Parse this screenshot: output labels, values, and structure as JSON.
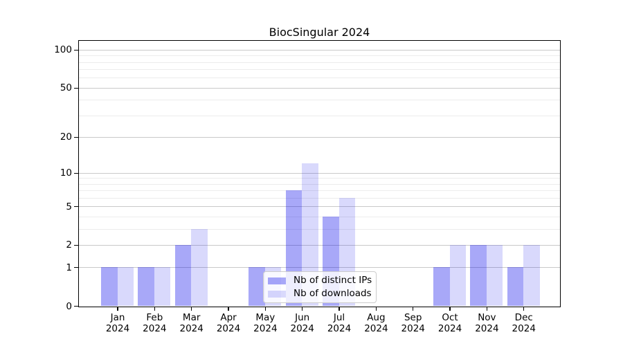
{
  "chart_data": {
    "type": "bar",
    "title": "BiocSingular 2024",
    "categories": [
      "Jan",
      "Feb",
      "Mar",
      "Apr",
      "May",
      "Jun",
      "Jul",
      "Aug",
      "Sep",
      "Oct",
      "Nov",
      "Dec"
    ],
    "year": "2024",
    "series": [
      {
        "name": "Nb of distinct IPs",
        "fill": "rgba(0,0,235,0.34)",
        "hex_on_white": "#a8a8f5",
        "values": [
          1,
          1,
          2,
          0,
          1,
          7,
          4,
          0,
          0,
          1,
          2,
          1
        ]
      },
      {
        "name": "Nb of downloads",
        "fill": "rgba(0,0,235,0.15)",
        "hex_on_white": "#dbdbf9",
        "values": [
          1,
          1,
          3,
          0,
          1,
          12,
          6,
          0,
          0,
          2,
          2,
          2
        ]
      }
    ],
    "yscale": "log1p",
    "yticks": [
      0,
      1,
      2,
      5,
      10,
      20,
      50,
      100
    ],
    "minor_gridlines": [
      3,
      4,
      6,
      7,
      8,
      9,
      30,
      40,
      60,
      70,
      80,
      90
    ],
    "ylim": [
      0,
      118
    ],
    "xlabel": "",
    "ylabel": "",
    "grid": true,
    "legend_position": "lower center",
    "colors": {
      "major_grid": "#c9c9c9",
      "minor_grid": "#ececec",
      "spine": "#000000",
      "text": "#000000",
      "legend_border": "#cccccc",
      "background": "#ffffff"
    }
  }
}
